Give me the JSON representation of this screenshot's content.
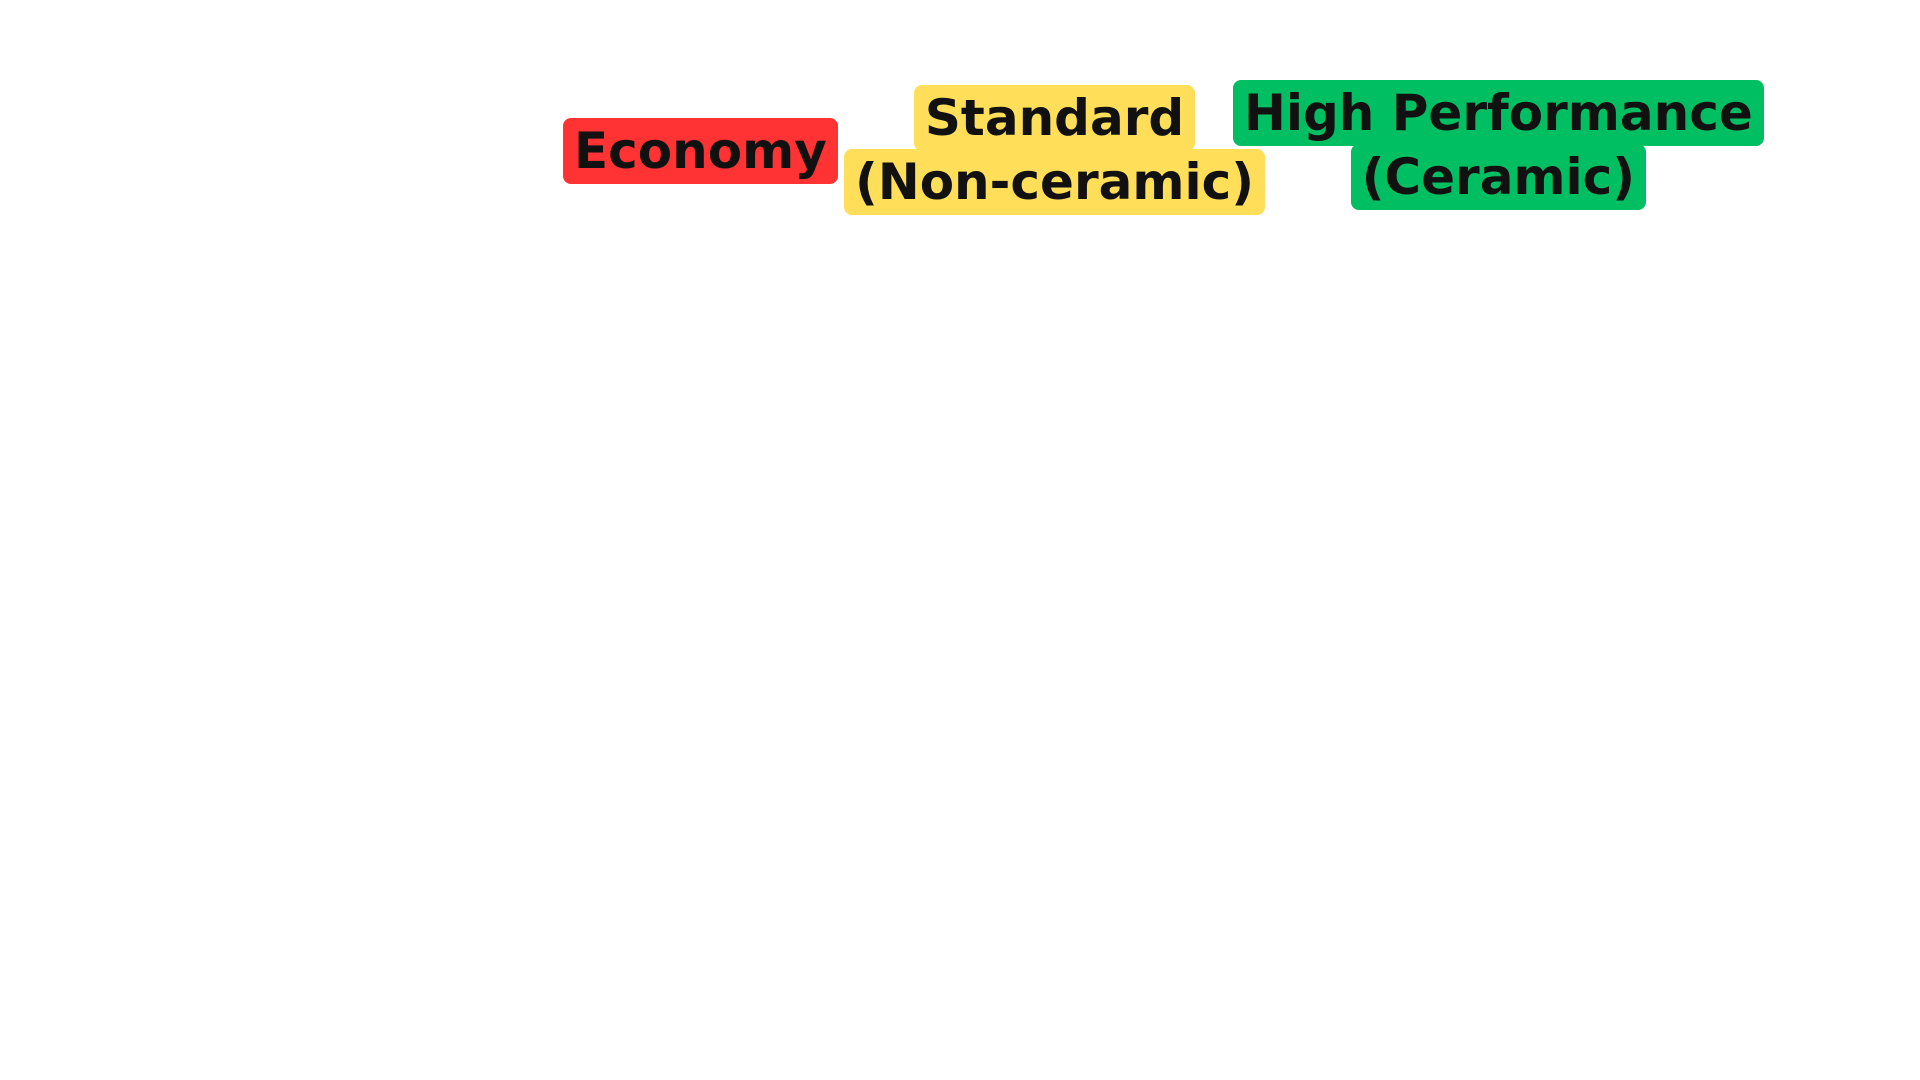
{
  "colors": {
    "economy": "#ff3333",
    "standard": "#ffde59",
    "high_performance": "#00bf63",
    "text": "#111111",
    "background": "#ffffff"
  },
  "tiers": [
    {
      "id": "economy",
      "lines": [
        "Economy"
      ]
    },
    {
      "id": "standard",
      "lines": [
        "Standard",
        "(Non-ceramic)"
      ]
    },
    {
      "id": "high_performance",
      "lines": [
        "High Performance",
        "(Ceramic)"
      ]
    }
  ]
}
